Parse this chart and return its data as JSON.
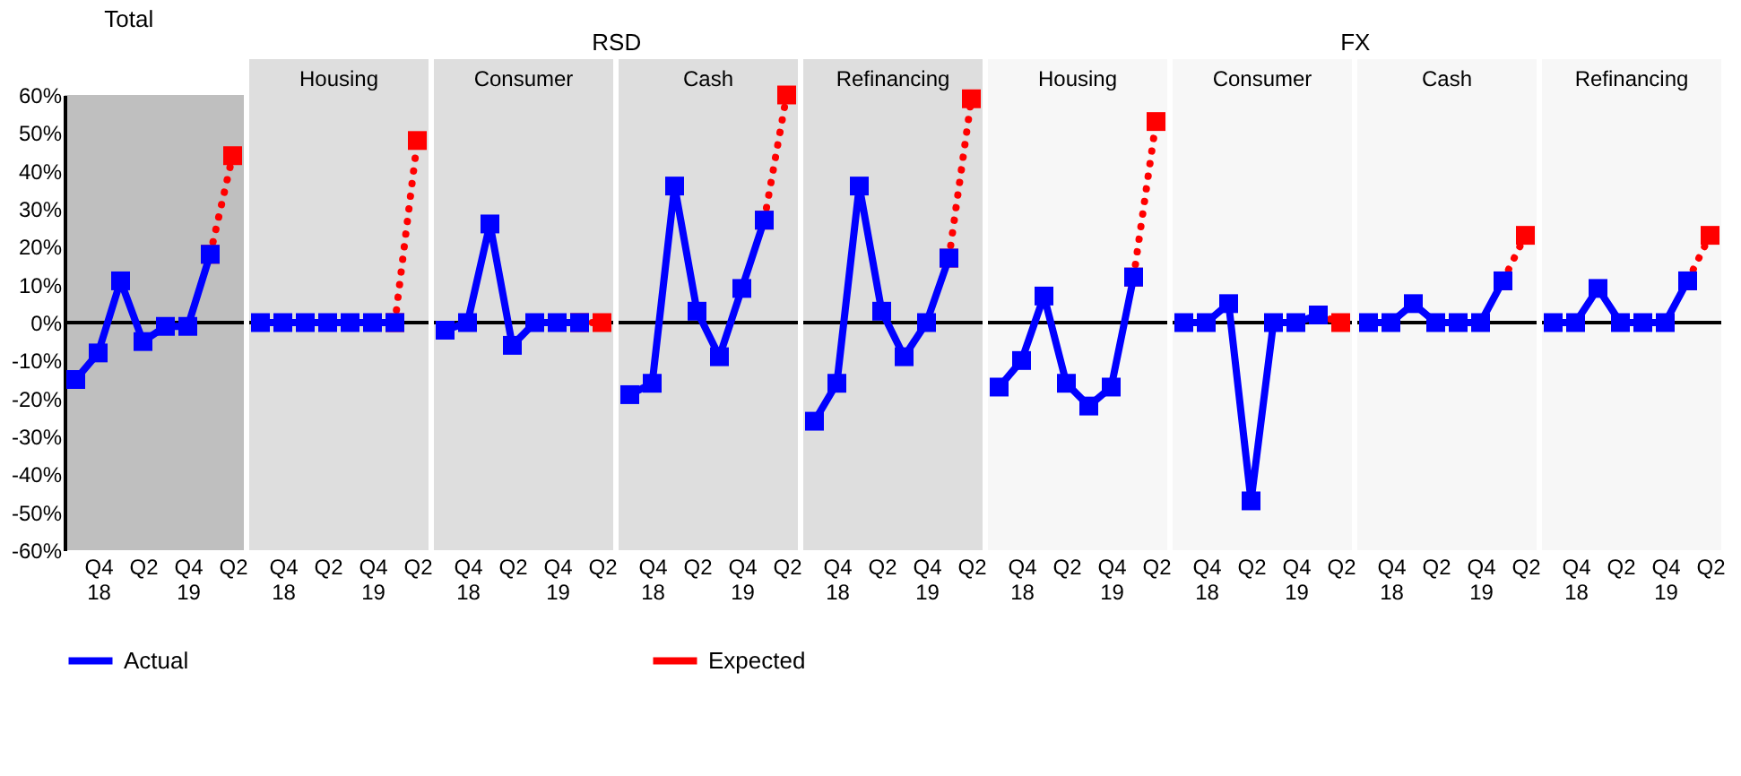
{
  "chart_data": [
    {
      "type": "line",
      "title": "Total",
      "categories": [
        null,
        "Q4 18",
        null,
        "Q2",
        null,
        "Q4 19",
        null,
        "Q2"
      ],
      "ylim": [
        -60,
        60
      ],
      "yticks": [
        {
          "value": -60,
          "label": "-60%"
        },
        {
          "value": -50,
          "label": "-50%"
        },
        {
          "value": -40,
          "label": "-40%"
        },
        {
          "value": -30,
          "label": "-30%"
        },
        {
          "value": -20,
          "label": "-20%"
        },
        {
          "value": -10,
          "label": "-10%"
        },
        {
          "value": 0,
          "label": "0%"
        },
        {
          "value": 10,
          "label": "10%"
        },
        {
          "value": 20,
          "label": "20%"
        },
        {
          "value": 30,
          "label": "30%"
        },
        {
          "value": 40,
          "label": "40%"
        },
        {
          "value": 50,
          "label": "50%"
        },
        {
          "value": 60,
          "label": "60%"
        }
      ],
      "grid": false,
      "legend": "bottom",
      "marker": "square",
      "ref_lines": [
        {
          "axis": "y",
          "value": 0,
          "color": "#000000"
        }
      ],
      "series": [
        {
          "name": "Actual",
          "color": "#0000ff",
          "line_style": "solid",
          "values": [
            -15,
            -8,
            11,
            -5,
            -1,
            -1,
            18,
            null
          ]
        },
        {
          "name": "Expected",
          "color": "#ff0000",
          "line_style": "dotted",
          "values": [
            null,
            null,
            null,
            null,
            null,
            null,
            18,
            44
          ]
        }
      ]
    },
    {
      "type": "line",
      "title": "Housing",
      "annotations": [
        "RSD"
      ],
      "categories": [
        null,
        "Q4 18",
        null,
        "Q2",
        null,
        "Q4 19",
        null,
        "Q2"
      ],
      "ylim": [
        -60,
        60
      ],
      "tick_labels": "x",
      "grid": false,
      "legend": "bottom",
      "marker": "square",
      "ref_lines": [
        {
          "axis": "y",
          "value": 0,
          "color": "#000000"
        }
      ],
      "series": [
        {
          "name": "Actual",
          "color": "#0000ff",
          "line_style": "solid",
          "values": [
            0,
            0,
            0,
            0,
            0,
            0,
            0,
            null
          ]
        },
        {
          "name": "Expected",
          "color": "#ff0000",
          "line_style": "dotted",
          "values": [
            null,
            null,
            null,
            null,
            null,
            null,
            0,
            48
          ]
        }
      ]
    },
    {
      "type": "line",
      "title": "Consumer",
      "categories": [
        null,
        "Q4 18",
        null,
        "Q2",
        null,
        "Q4 19",
        null,
        "Q2"
      ],
      "ylim": [
        -60,
        60
      ],
      "tick_labels": "x",
      "grid": false,
      "legend": "bottom",
      "marker": "square",
      "ref_lines": [
        {
          "axis": "y",
          "value": 0,
          "color": "#000000"
        }
      ],
      "series": [
        {
          "name": "Actual",
          "color": "#0000ff",
          "line_style": "solid",
          "values": [
            -2,
            0,
            26,
            -6,
            0,
            0,
            0,
            null
          ]
        },
        {
          "name": "Expected",
          "color": "#ff0000",
          "line_style": "dotted",
          "values": [
            null,
            null,
            null,
            null,
            null,
            null,
            0,
            0
          ]
        }
      ]
    },
    {
      "type": "line",
      "title": "Cash",
      "categories": [
        null,
        "Q4 18",
        null,
        "Q2",
        null,
        "Q4 19",
        null,
        "Q2"
      ],
      "ylim": [
        -60,
        60
      ],
      "tick_labels": "x",
      "grid": false,
      "legend": "bottom",
      "marker": "square",
      "ref_lines": [
        {
          "axis": "y",
          "value": 0,
          "color": "#000000"
        }
      ],
      "series": [
        {
          "name": "Actual",
          "color": "#0000ff",
          "line_style": "solid",
          "values": [
            -19,
            -16,
            36,
            3,
            -9,
            9,
            27,
            null
          ]
        },
        {
          "name": "Expected",
          "color": "#ff0000",
          "line_style": "dotted",
          "values": [
            null,
            null,
            null,
            null,
            null,
            null,
            27,
            60
          ]
        }
      ]
    },
    {
      "type": "line",
      "title": "Refinancing",
      "categories": [
        null,
        "Q4 18",
        null,
        "Q2",
        null,
        "Q4 19",
        null,
        "Q2"
      ],
      "ylim": [
        -60,
        60
      ],
      "tick_labels": "x",
      "grid": false,
      "legend": "bottom",
      "marker": "square",
      "ref_lines": [
        {
          "axis": "y",
          "value": 0,
          "color": "#000000"
        }
      ],
      "series": [
        {
          "name": "Actual",
          "color": "#0000ff",
          "line_style": "solid",
          "values": [
            -26,
            -16,
            36,
            3,
            -9,
            0,
            17,
            null
          ]
        },
        {
          "name": "Expected",
          "color": "#ff0000",
          "line_style": "dotted",
          "values": [
            null,
            null,
            null,
            null,
            null,
            null,
            17,
            59
          ]
        }
      ]
    },
    {
      "type": "line",
      "title": "Housing",
      "annotations": [
        "FX"
      ],
      "categories": [
        null,
        "Q4 18",
        null,
        "Q2",
        null,
        "Q4 19",
        null,
        "Q2"
      ],
      "ylim": [
        -60,
        60
      ],
      "tick_labels": "x",
      "grid": false,
      "legend": "bottom",
      "marker": "square",
      "ref_lines": [
        {
          "axis": "y",
          "value": 0,
          "color": "#000000"
        }
      ],
      "series": [
        {
          "name": "Actual",
          "color": "#0000ff",
          "line_style": "solid",
          "values": [
            -17,
            -10,
            7,
            -16,
            -22,
            -17,
            12,
            null
          ]
        },
        {
          "name": "Expected",
          "color": "#ff0000",
          "line_style": "dotted",
          "values": [
            null,
            null,
            null,
            null,
            null,
            null,
            12,
            53
          ]
        }
      ]
    },
    {
      "type": "line",
      "title": "Consumer",
      "categories": [
        null,
        "Q4 18",
        null,
        "Q2",
        null,
        "Q4 19",
        null,
        "Q2"
      ],
      "ylim": [
        -60,
        60
      ],
      "tick_labels": "x",
      "grid": false,
      "legend": "bottom",
      "marker": "square",
      "ref_lines": [
        {
          "axis": "y",
          "value": 0,
          "color": "#000000"
        }
      ],
      "series": [
        {
          "name": "Actual",
          "color": "#0000ff",
          "line_style": "solid",
          "values": [
            0,
            0,
            5,
            -47,
            0,
            0,
            2,
            null
          ]
        },
        {
          "name": "Expected",
          "color": "#ff0000",
          "line_style": "dotted",
          "values": [
            null,
            null,
            null,
            null,
            null,
            null,
            2,
            0
          ]
        }
      ]
    },
    {
      "type": "line",
      "title": "Cash",
      "categories": [
        null,
        "Q4 18",
        null,
        "Q2",
        null,
        "Q4 19",
        null,
        "Q2"
      ],
      "ylim": [
        -60,
        60
      ],
      "tick_labels": "x",
      "grid": false,
      "legend": "bottom",
      "marker": "square",
      "ref_lines": [
        {
          "axis": "y",
          "value": 0,
          "color": "#000000"
        }
      ],
      "series": [
        {
          "name": "Actual",
          "color": "#0000ff",
          "line_style": "solid",
          "values": [
            0,
            0,
            5,
            0,
            0,
            0,
            11,
            null
          ]
        },
        {
          "name": "Expected",
          "color": "#ff0000",
          "line_style": "dotted",
          "values": [
            null,
            null,
            null,
            null,
            null,
            null,
            11,
            23
          ]
        }
      ]
    },
    {
      "type": "line",
      "title": "Refinancing",
      "categories": [
        null,
        "Q4 18",
        null,
        "Q2",
        null,
        "Q4 19",
        null,
        "Q2"
      ],
      "ylim": [
        -60,
        60
      ],
      "tick_labels": "x",
      "grid": false,
      "legend": "bottom",
      "marker": "square",
      "ref_lines": [
        {
          "axis": "y",
          "value": 0,
          "color": "#000000"
        }
      ],
      "series": [
        {
          "name": "Actual",
          "color": "#0000ff",
          "line_style": "solid",
          "values": [
            0,
            0,
            9,
            0,
            0,
            0,
            11,
            null
          ]
        },
        {
          "name": "Expected",
          "color": "#ff0000",
          "line_style": "dotted",
          "values": [
            null,
            null,
            null,
            null,
            null,
            null,
            11,
            23
          ]
        }
      ]
    }
  ]
}
